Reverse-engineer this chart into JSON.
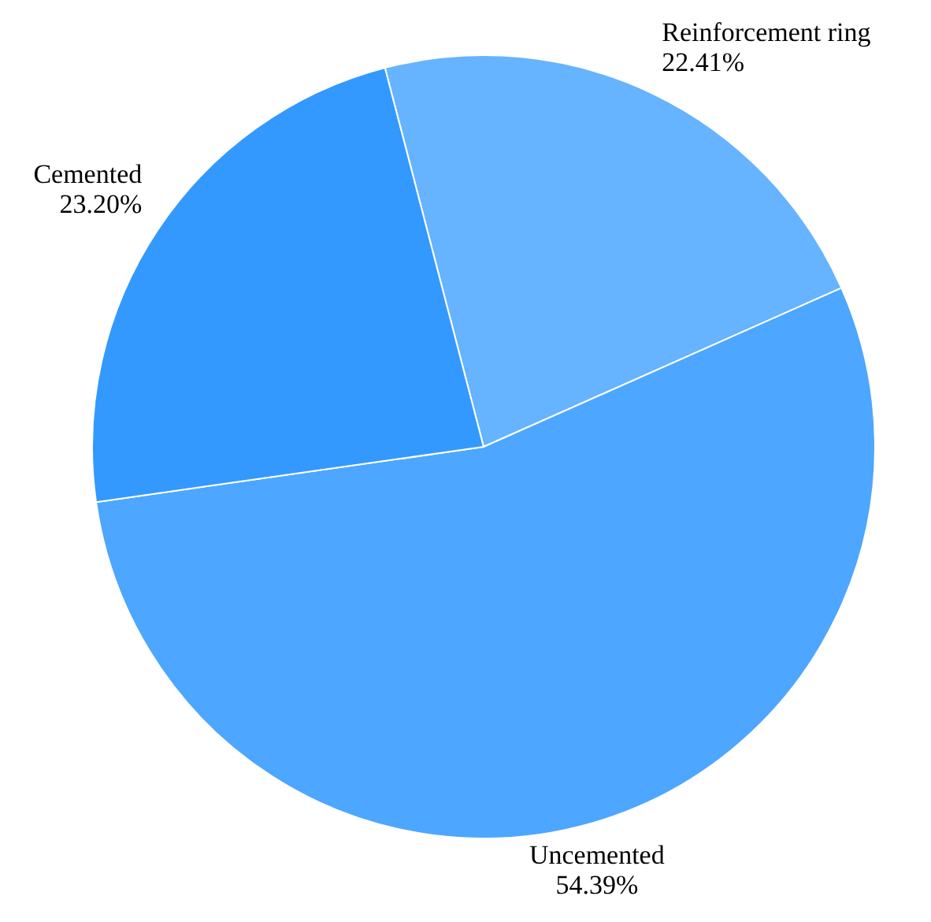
{
  "chart_data": {
    "type": "pie",
    "categories": [
      "Reinforcement ring",
      "Uncemented",
      "Cemented"
    ],
    "values": [
      22.41,
      54.39,
      23.2
    ],
    "value_labels": [
      "22.41%",
      "54.39%",
      "23.20%"
    ],
    "colors": [
      "#66b3ff",
      "#4da6ff",
      "#3399ff"
    ],
    "legend": false
  }
}
